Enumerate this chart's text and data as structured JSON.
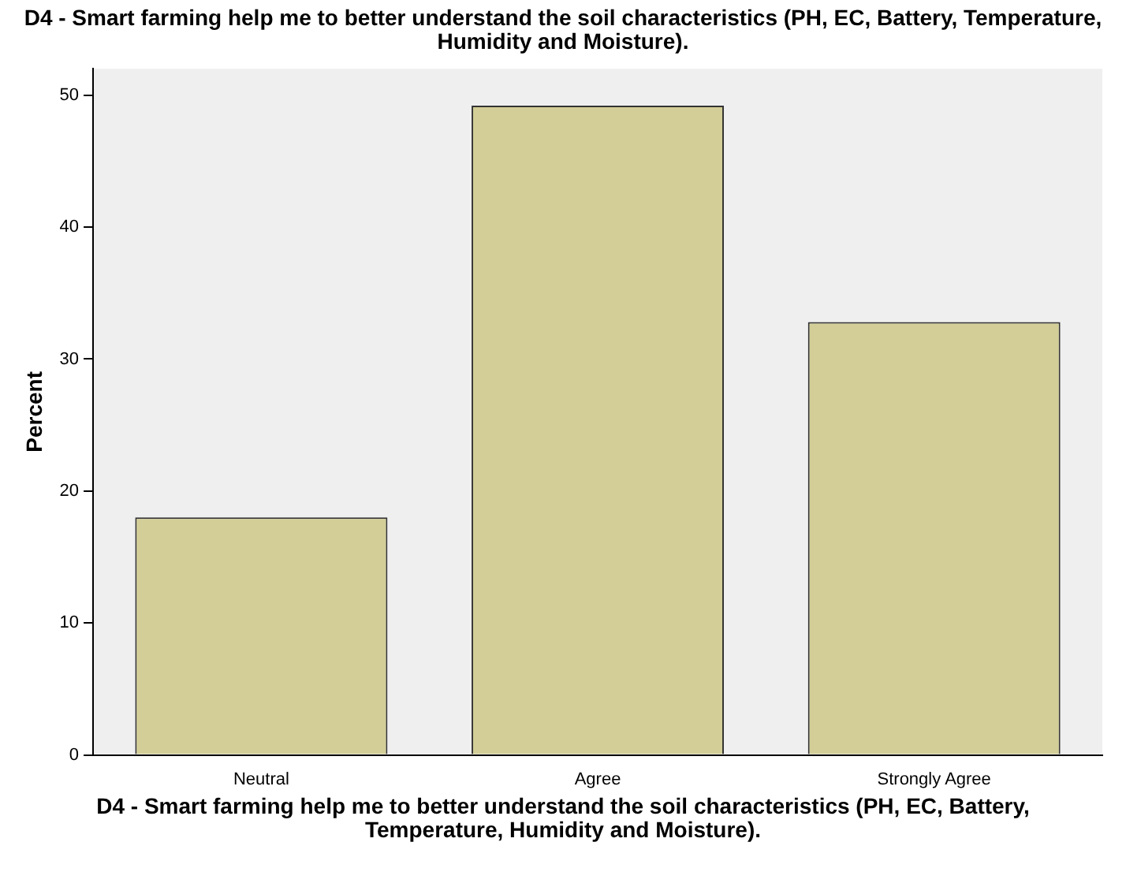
{
  "chart_data": {
    "type": "bar",
    "title": "D4 - Smart farming help me to better understand the soil characteristics (PH, EC, Battery, Temperature, Humidity and Moisture).",
    "xlabel": "D4 - Smart farming help me to better understand the soil characteristics (PH, EC, Battery, Temperature, Humidity and Moisture).",
    "ylabel": "Percent",
    "categories": [
      "Neutral",
      "Agree",
      "Strongly Agree"
    ],
    "values": [
      18.0,
      49.2,
      32.8
    ],
    "color": "#d3ce97",
    "ylim": [
      0,
      52
    ],
    "yticks": [
      0,
      10,
      20,
      30,
      40,
      50
    ],
    "grid": false,
    "legend": false
  }
}
